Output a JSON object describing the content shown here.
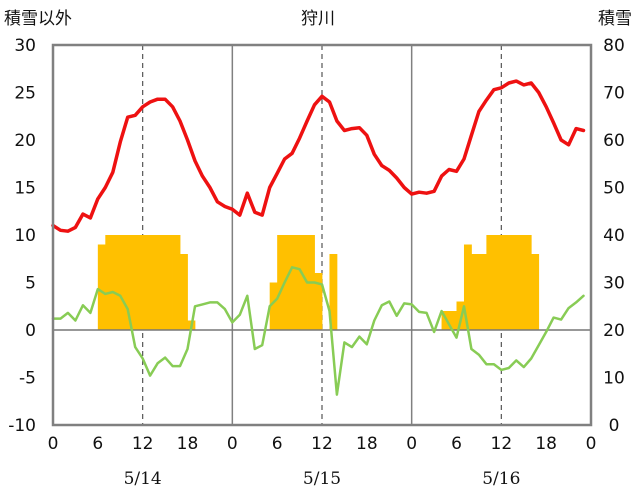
{
  "chart_data": {
    "type": "line",
    "title": "狩川",
    "left_axis_label": "積雪以外",
    "right_axis_label": "積雪",
    "left_ylim": [
      -10,
      30
    ],
    "left_yticks": [
      "30",
      "25",
      "20",
      "15",
      "10",
      "5",
      "0",
      "-5",
      "-10"
    ],
    "right_ylim": [
      0,
      80
    ],
    "right_yticks": [
      "80",
      "70",
      "60",
      "50",
      "40",
      "30",
      "20",
      "10",
      "0"
    ],
    "x_hour_ticks": [
      "0",
      "6",
      "12",
      "18",
      "0",
      "6",
      "12",
      "18",
      "0",
      "6",
      "12",
      "18",
      "0"
    ],
    "date_labels": [
      "5/14",
      "5/15",
      "5/16"
    ],
    "colors": {
      "temperature": "#ee1111",
      "line2": "#88cc55",
      "bars": "#ffc000",
      "frame": "#808080"
    },
    "temperature": [
      11.0,
      10.5,
      10.4,
      10.8,
      12.2,
      11.8,
      13.8,
      15.0,
      16.6,
      19.8,
      22.4,
      22.6,
      23.5,
      24.0,
      24.3,
      24.3,
      23.5,
      22.0,
      20.0,
      17.8,
      16.2,
      15.0,
      13.5,
      13.0,
      12.7,
      12.1,
      14.4,
      12.4,
      12.1,
      15.0,
      16.5,
      18.0,
      18.6,
      20.2,
      22.0,
      23.7,
      24.6,
      24.0,
      22.0,
      21.0,
      21.2,
      21.3,
      20.5,
      18.5,
      17.3,
      16.8,
      16.0,
      15.0,
      14.3,
      14.5,
      14.4,
      14.6,
      16.2,
      16.9,
      16.7,
      18.0,
      20.5,
      23.0,
      24.2,
      25.3,
      25.5,
      26.0,
      26.2,
      25.8,
      26.0,
      25.0,
      23.5,
      21.8,
      20.0,
      19.5,
      21.2,
      21.0
    ],
    "line2": [
      1.2,
      1.2,
      1.8,
      1.0,
      2.6,
      1.8,
      4.3,
      3.8,
      4.0,
      3.6,
      2.2,
      -1.8,
      -3.0,
      -4.8,
      -3.5,
      -2.9,
      -3.8,
      -3.8,
      -2.0,
      2.5,
      2.7,
      2.9,
      2.9,
      2.2,
      0.8,
      1.6,
      3.6,
      -2.0,
      -1.6,
      2.5,
      3.3,
      5.0,
      6.6,
      6.4,
      5.0,
      5.0,
      4.8,
      2.0,
      -6.8,
      -1.3,
      -1.8,
      -0.7,
      -1.5,
      1.0,
      2.6,
      3.0,
      1.5,
      2.8,
      2.7,
      1.9,
      1.8,
      -0.2,
      2.0,
      0.6,
      -0.8,
      2.5,
      -2.0,
      -2.6,
      -3.6,
      -3.6,
      -4.2,
      -4.0,
      -3.2,
      -3.9,
      -3.0,
      -1.6,
      -0.2,
      1.3,
      1.1,
      2.3,
      2.9,
      3.6
    ],
    "bars": [
      {
        "hour": 6.5,
        "value": 9
      },
      {
        "hour": 7.5,
        "value": 10
      },
      {
        "hour": 8.5,
        "value": 10
      },
      {
        "hour": 9.5,
        "value": 10
      },
      {
        "hour": 10.5,
        "value": 10
      },
      {
        "hour": 11.5,
        "value": 10
      },
      {
        "hour": 12.5,
        "value": 10
      },
      {
        "hour": 13.5,
        "value": 10
      },
      {
        "hour": 14.5,
        "value": 10
      },
      {
        "hour": 15.5,
        "value": 10
      },
      {
        "hour": 16.5,
        "value": 10
      },
      {
        "hour": 17.5,
        "value": 8
      },
      {
        "hour": 18.5,
        "value": 1
      },
      {
        "hour": 29.5,
        "value": 5
      },
      {
        "hour": 30.5,
        "value": 10
      },
      {
        "hour": 31.5,
        "value": 10
      },
      {
        "hour": 32.5,
        "value": 10
      },
      {
        "hour": 33.5,
        "value": 10
      },
      {
        "hour": 34.5,
        "value": 10
      },
      {
        "hour": 35.5,
        "value": 6
      },
      {
        "hour": 37.5,
        "value": 8
      },
      {
        "hour": 52.5,
        "value": 2
      },
      {
        "hour": 53.5,
        "value": 2
      },
      {
        "hour": 54.5,
        "value": 3
      },
      {
        "hour": 55.5,
        "value": 9
      },
      {
        "hour": 56.5,
        "value": 8
      },
      {
        "hour": 57.5,
        "value": 8
      },
      {
        "hour": 58.5,
        "value": 10
      },
      {
        "hour": 59.5,
        "value": 10
      },
      {
        "hour": 60.5,
        "value": 10
      },
      {
        "hour": 61.5,
        "value": 10
      },
      {
        "hour": 62.5,
        "value": 10
      },
      {
        "hour": 63.5,
        "value": 10
      },
      {
        "hour": 64.5,
        "value": 8
      }
    ]
  }
}
